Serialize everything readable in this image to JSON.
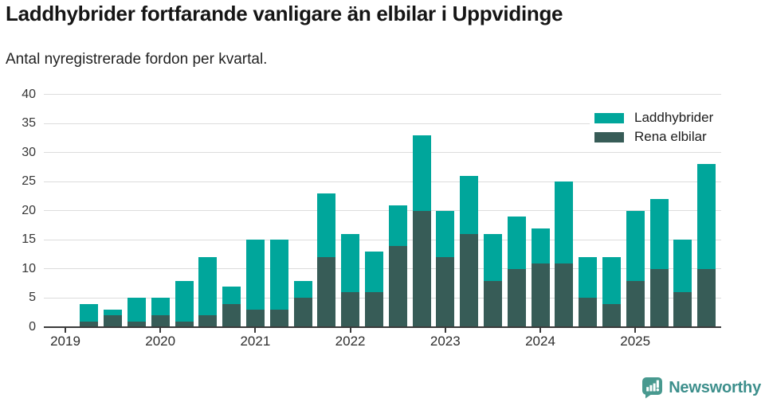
{
  "title": "Laddhybrider fortfarande vanligare än elbilar i Uppvidinge",
  "subtitle": "Antal nyregistrerade fordon per kvartal.",
  "chart_data": {
    "type": "bar",
    "stacked": true,
    "title": "Laddhybrider fortfarande vanligare än elbilar i Uppvidinge",
    "subtitle": "Antal nyregistrerade fordon per kvartal.",
    "xlabel": "",
    "ylabel": "",
    "ylim": [
      0,
      40
    ],
    "y_ticks": [
      0,
      5,
      10,
      15,
      20,
      25,
      30,
      35,
      40
    ],
    "grid": "horizontal",
    "legend_position": "top-right",
    "x_tick_labels": [
      "2019",
      "2020",
      "2021",
      "2022",
      "2023",
      "2024",
      "2025"
    ],
    "categories": [
      "2019 K1",
      "2019 K2",
      "2019 K3",
      "2019 K4",
      "2020 K1",
      "2020 K2",
      "2020 K3",
      "2020 K4",
      "2021 K1",
      "2021 K2",
      "2021 K3",
      "2021 K4",
      "2022 K1",
      "2022 K2",
      "2022 K3",
      "2022 K4",
      "2023 K1",
      "2023 K2",
      "2023 K3",
      "2023 K4",
      "2024 K1",
      "2024 K2",
      "2024 K3",
      "2024 K4",
      "2025 K1",
      "2025 K2",
      "2025 K3",
      "2025 K4"
    ],
    "series": [
      {
        "name": "Laddhybrider",
        "color": "#00A69B",
        "values": [
          0,
          3,
          1,
          4,
          3,
          7,
          10,
          3,
          12,
          12,
          3,
          11,
          10,
          7,
          7,
          13,
          8,
          10,
          8,
          9,
          6,
          14,
          7,
          8,
          12,
          12,
          9,
          18
        ]
      },
      {
        "name": "Rena elbilar",
        "color": "#375C57",
        "values": [
          0,
          1,
          2,
          1,
          2,
          1,
          2,
          4,
          3,
          3,
          5,
          12,
          6,
          6,
          14,
          20,
          12,
          16,
          8,
          10,
          11,
          11,
          5,
          4,
          8,
          10,
          6,
          10
        ]
      }
    ],
    "stacked_totals": [
      0,
      4,
      3,
      5,
      5,
      8,
      12,
      7,
      15,
      15,
      8,
      23,
      16,
      13,
      21,
      33,
      20,
      26,
      16,
      19,
      17,
      25,
      12,
      12,
      20,
      22,
      15,
      28
    ]
  },
  "legend": {
    "items": [
      {
        "label": "Laddhybrider",
        "color": "#00A69B"
      },
      {
        "label": "Rena elbilar",
        "color": "#375C57"
      }
    ]
  },
  "footer": {
    "brand": "Newsworthy",
    "brand_color": "#3D8F8C",
    "logo_color": "#48998F",
    "logo_icon": "bar-chart-speech-bubble-icon"
  }
}
